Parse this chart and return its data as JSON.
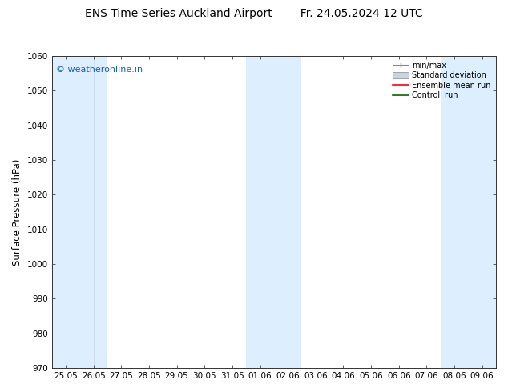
{
  "title_left": "ENS Time Series Auckland Airport",
  "title_right": "Fr. 24.05.2024 12 UTC",
  "ylabel": "Surface Pressure (hPa)",
  "ylim": [
    970,
    1060
  ],
  "yticks": [
    970,
    980,
    990,
    1000,
    1010,
    1020,
    1030,
    1040,
    1050,
    1060
  ],
  "xtick_labels": [
    "25.05",
    "26.05",
    "27.05",
    "28.05",
    "29.05",
    "30.05",
    "31.05",
    "01.06",
    "02.06",
    "03.06",
    "04.06",
    "05.06",
    "06.06",
    "07.06",
    "08.06",
    "09.06"
  ],
  "watermark": "© weatheronline.in",
  "watermark_color": "#1a5fb4",
  "background_color": "#ffffff",
  "shaded_band_color": "#ddeeff",
  "legend_entries": [
    "min/max",
    "Standard deviation",
    "Ensemble mean run",
    "Controll run"
  ],
  "legend_colors_line": [
    "#888888",
    "#aabbcc",
    "#ff0000",
    "#006600"
  ],
  "title_fontsize": 10,
  "tick_label_fontsize": 7.5,
  "ylabel_fontsize": 8.5
}
